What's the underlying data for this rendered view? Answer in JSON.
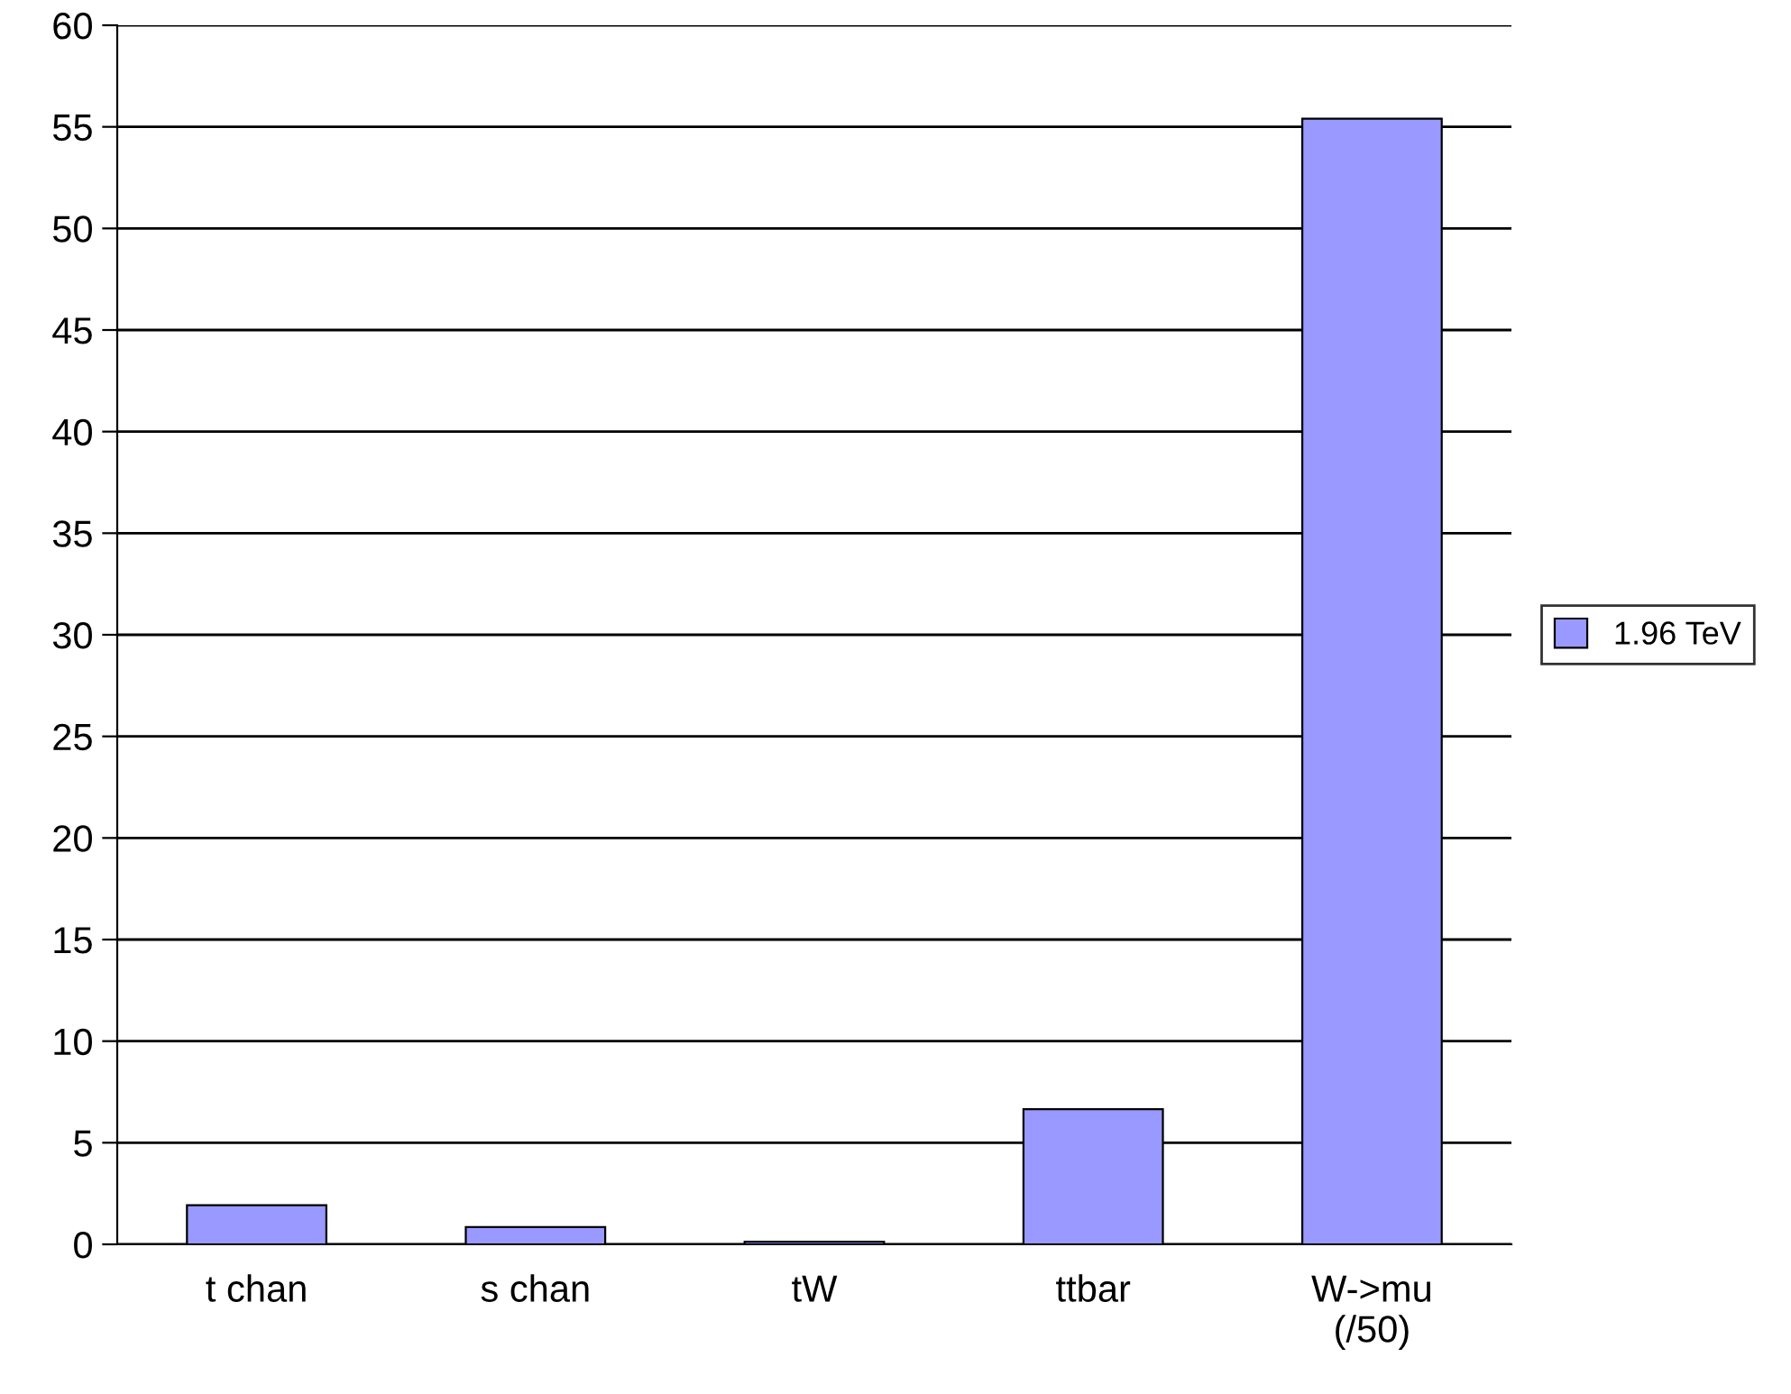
{
  "chart_data": {
    "type": "bar",
    "categories": [
      "t chan",
      "s chan",
      "tW",
      "ttbar",
      "W->mu\n(/50)"
    ],
    "series": [
      {
        "name": "1.96 TeV",
        "color": "#9999ff",
        "values": [
          1.92,
          0.85,
          0.13,
          6.65,
          55.4
        ]
      }
    ],
    "ylim": [
      0,
      60
    ],
    "yticks": [
      0,
      5,
      10,
      15,
      20,
      25,
      30,
      35,
      40,
      45,
      50,
      55,
      60
    ],
    "grid": "y",
    "legend": "right"
  }
}
